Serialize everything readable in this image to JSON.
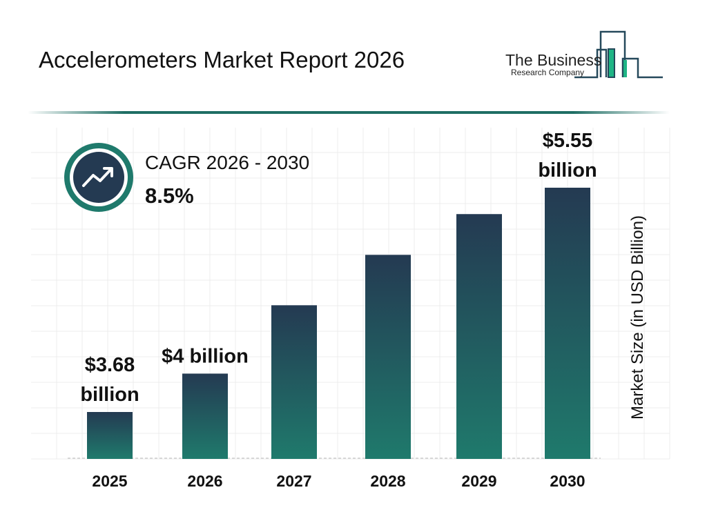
{
  "header": {
    "title": "Accelerometers Market Report 2026"
  },
  "logo": {
    "line1": "The Business",
    "line2": "Research Company"
  },
  "cagr": {
    "label": "CAGR 2026 - 2030",
    "value": "8.5%",
    "icon": "trend-up-arrow-icon"
  },
  "colors": {
    "bar_top": "#243a52",
    "bar_bottom": "#1f7a6c",
    "accent": "#1f6e64"
  },
  "chart_data": {
    "type": "bar",
    "title": "Accelerometers Market Report 2026",
    "xlabel": "",
    "ylabel": "Market Size (in USD Billion)",
    "categories": [
      "2025",
      "2026",
      "2027",
      "2028",
      "2029",
      "2030"
    ],
    "values": [
      3.68,
      4.0,
      4.57,
      4.99,
      5.33,
      5.55
    ],
    "data_labels": [
      [
        "$3.68",
        "billion"
      ],
      [
        "$4 billion"
      ],
      [],
      [],
      [],
      [
        "$5.55",
        "billion"
      ]
    ],
    "grid": true,
    "legend": "none"
  }
}
